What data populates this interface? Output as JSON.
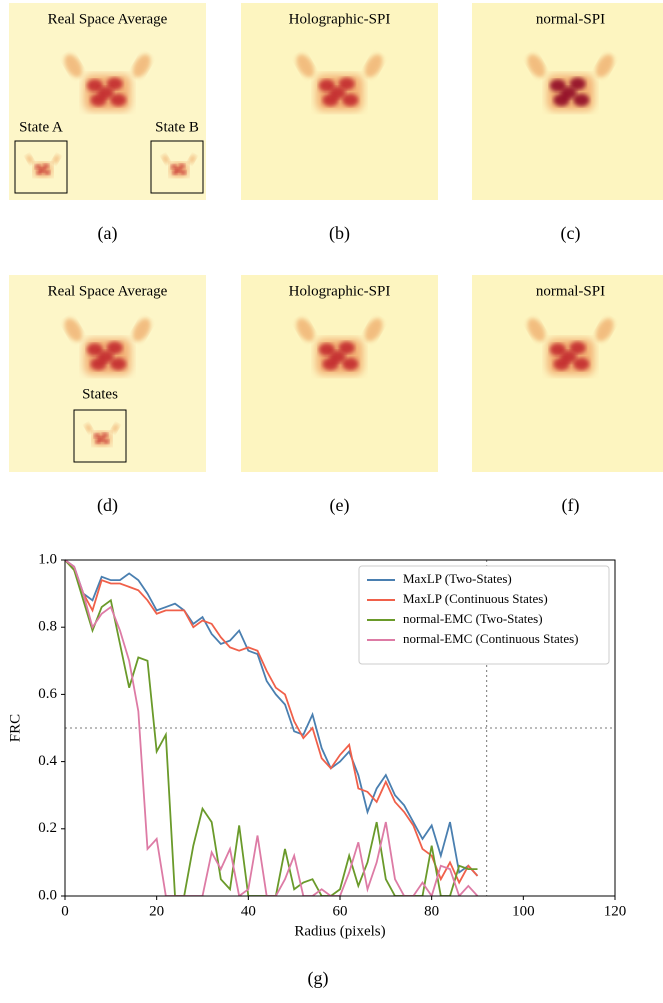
{
  "panels": [
    {
      "title": "Real Space Average",
      "caption": "(a)",
      "insets": [
        "State A",
        "State B"
      ]
    },
    {
      "title": "Holographic-SPI",
      "caption": "(b)"
    },
    {
      "title": "normal-SPI",
      "caption": "(c)"
    },
    {
      "title": "Real Space Average",
      "caption": "(d)",
      "insets": [
        "States"
      ]
    },
    {
      "title": "Holographic-SPI",
      "caption": "(e)"
    },
    {
      "title": "normal-SPI",
      "caption": "(f)"
    }
  ],
  "chart_data": {
    "type": "line",
    "caption": "(g)",
    "xlabel": "Radius (pixels)",
    "ylabel": "FRC",
    "x": [
      0,
      2,
      4,
      6,
      8,
      10,
      12,
      14,
      16,
      18,
      20,
      22,
      24,
      26,
      28,
      30,
      32,
      34,
      36,
      38,
      40,
      42,
      44,
      46,
      48,
      50,
      52,
      54,
      56,
      58,
      60,
      62,
      64,
      66,
      68,
      70,
      72,
      74,
      76,
      78,
      80,
      82,
      84,
      86,
      88,
      90
    ],
    "series": [
      {
        "name": "MaxLP (Two-States)",
        "color": "#4a7fb0",
        "values": [
          1.0,
          0.98,
          0.9,
          0.88,
          0.95,
          0.94,
          0.94,
          0.96,
          0.94,
          0.9,
          0.85,
          0.86,
          0.87,
          0.85,
          0.81,
          0.83,
          0.78,
          0.75,
          0.76,
          0.79,
          0.73,
          0.72,
          0.64,
          0.6,
          0.57,
          0.49,
          0.48,
          0.54,
          0.44,
          0.38,
          0.4,
          0.43,
          0.36,
          0.25,
          0.32,
          0.36,
          0.3,
          0.27,
          0.22,
          0.17,
          0.21,
          0.12,
          0.22,
          0.07,
          0.09,
          0.06
        ]
      },
      {
        "name": "MaxLP (Continuous States)",
        "color": "#f0604a",
        "values": [
          1.0,
          0.97,
          0.9,
          0.85,
          0.94,
          0.93,
          0.93,
          0.92,
          0.91,
          0.88,
          0.84,
          0.85,
          0.85,
          0.85,
          0.8,
          0.82,
          0.81,
          0.77,
          0.74,
          0.73,
          0.74,
          0.73,
          0.67,
          0.62,
          0.6,
          0.52,
          0.47,
          0.5,
          0.41,
          0.38,
          0.42,
          0.45,
          0.32,
          0.31,
          0.28,
          0.34,
          0.28,
          0.25,
          0.21,
          0.14,
          0.12,
          0.05,
          0.1,
          0.04,
          0.09,
          0.06
        ]
      },
      {
        "name": "normal-EMC (Two-States)",
        "color": "#6a9a2a",
        "values": [
          1.0,
          0.97,
          0.88,
          0.79,
          0.86,
          0.88,
          0.75,
          0.62,
          0.71,
          0.7,
          0.43,
          0.48,
          0.0,
          0.0,
          0.15,
          0.26,
          0.22,
          0.05,
          0.02,
          0.21,
          0.0,
          0.0,
          0.0,
          0.0,
          0.14,
          0.02,
          0.04,
          0.05,
          0.0,
          0.0,
          0.02,
          0.12,
          0.03,
          0.1,
          0.22,
          0.05,
          0.0,
          0.0,
          0.0,
          0.0,
          0.15,
          0.0,
          0.0,
          0.09,
          0.08,
          0.08
        ]
      },
      {
        "name": "normal-EMC (Continuous States)",
        "color": "#dd7ba5",
        "values": [
          1.0,
          0.98,
          0.9,
          0.8,
          0.84,
          0.86,
          0.79,
          0.7,
          0.55,
          0.14,
          0.17,
          0.0,
          0.0,
          0.0,
          0.0,
          0.0,
          0.13,
          0.08,
          0.14,
          0.0,
          0.02,
          0.18,
          0.0,
          0.0,
          0.05,
          0.12,
          0.0,
          0.0,
          0.02,
          0.0,
          0.0,
          0.07,
          0.16,
          0.02,
          0.1,
          0.22,
          0.05,
          0.0,
          0.0,
          0.04,
          0.0,
          0.09,
          0.08,
          0.0,
          0.03,
          0.0
        ]
      }
    ],
    "xlim": [
      0,
      120
    ],
    "ylim": [
      0,
      1
    ],
    "xticks": [
      0,
      20,
      40,
      60,
      80,
      100,
      120
    ],
    "yticks": [
      {
        "value": 0,
        "label": "0.0"
      },
      {
        "value": 0.2,
        "label": "0.2"
      },
      {
        "value": 0.4,
        "label": "0.4"
      },
      {
        "value": 0.6,
        "label": "0.6"
      },
      {
        "value": 0.8,
        "label": "0.8"
      },
      {
        "value": 1,
        "label": "1.0"
      }
    ],
    "hline": 0.5,
    "vline": 92,
    "legend": "upper right"
  }
}
